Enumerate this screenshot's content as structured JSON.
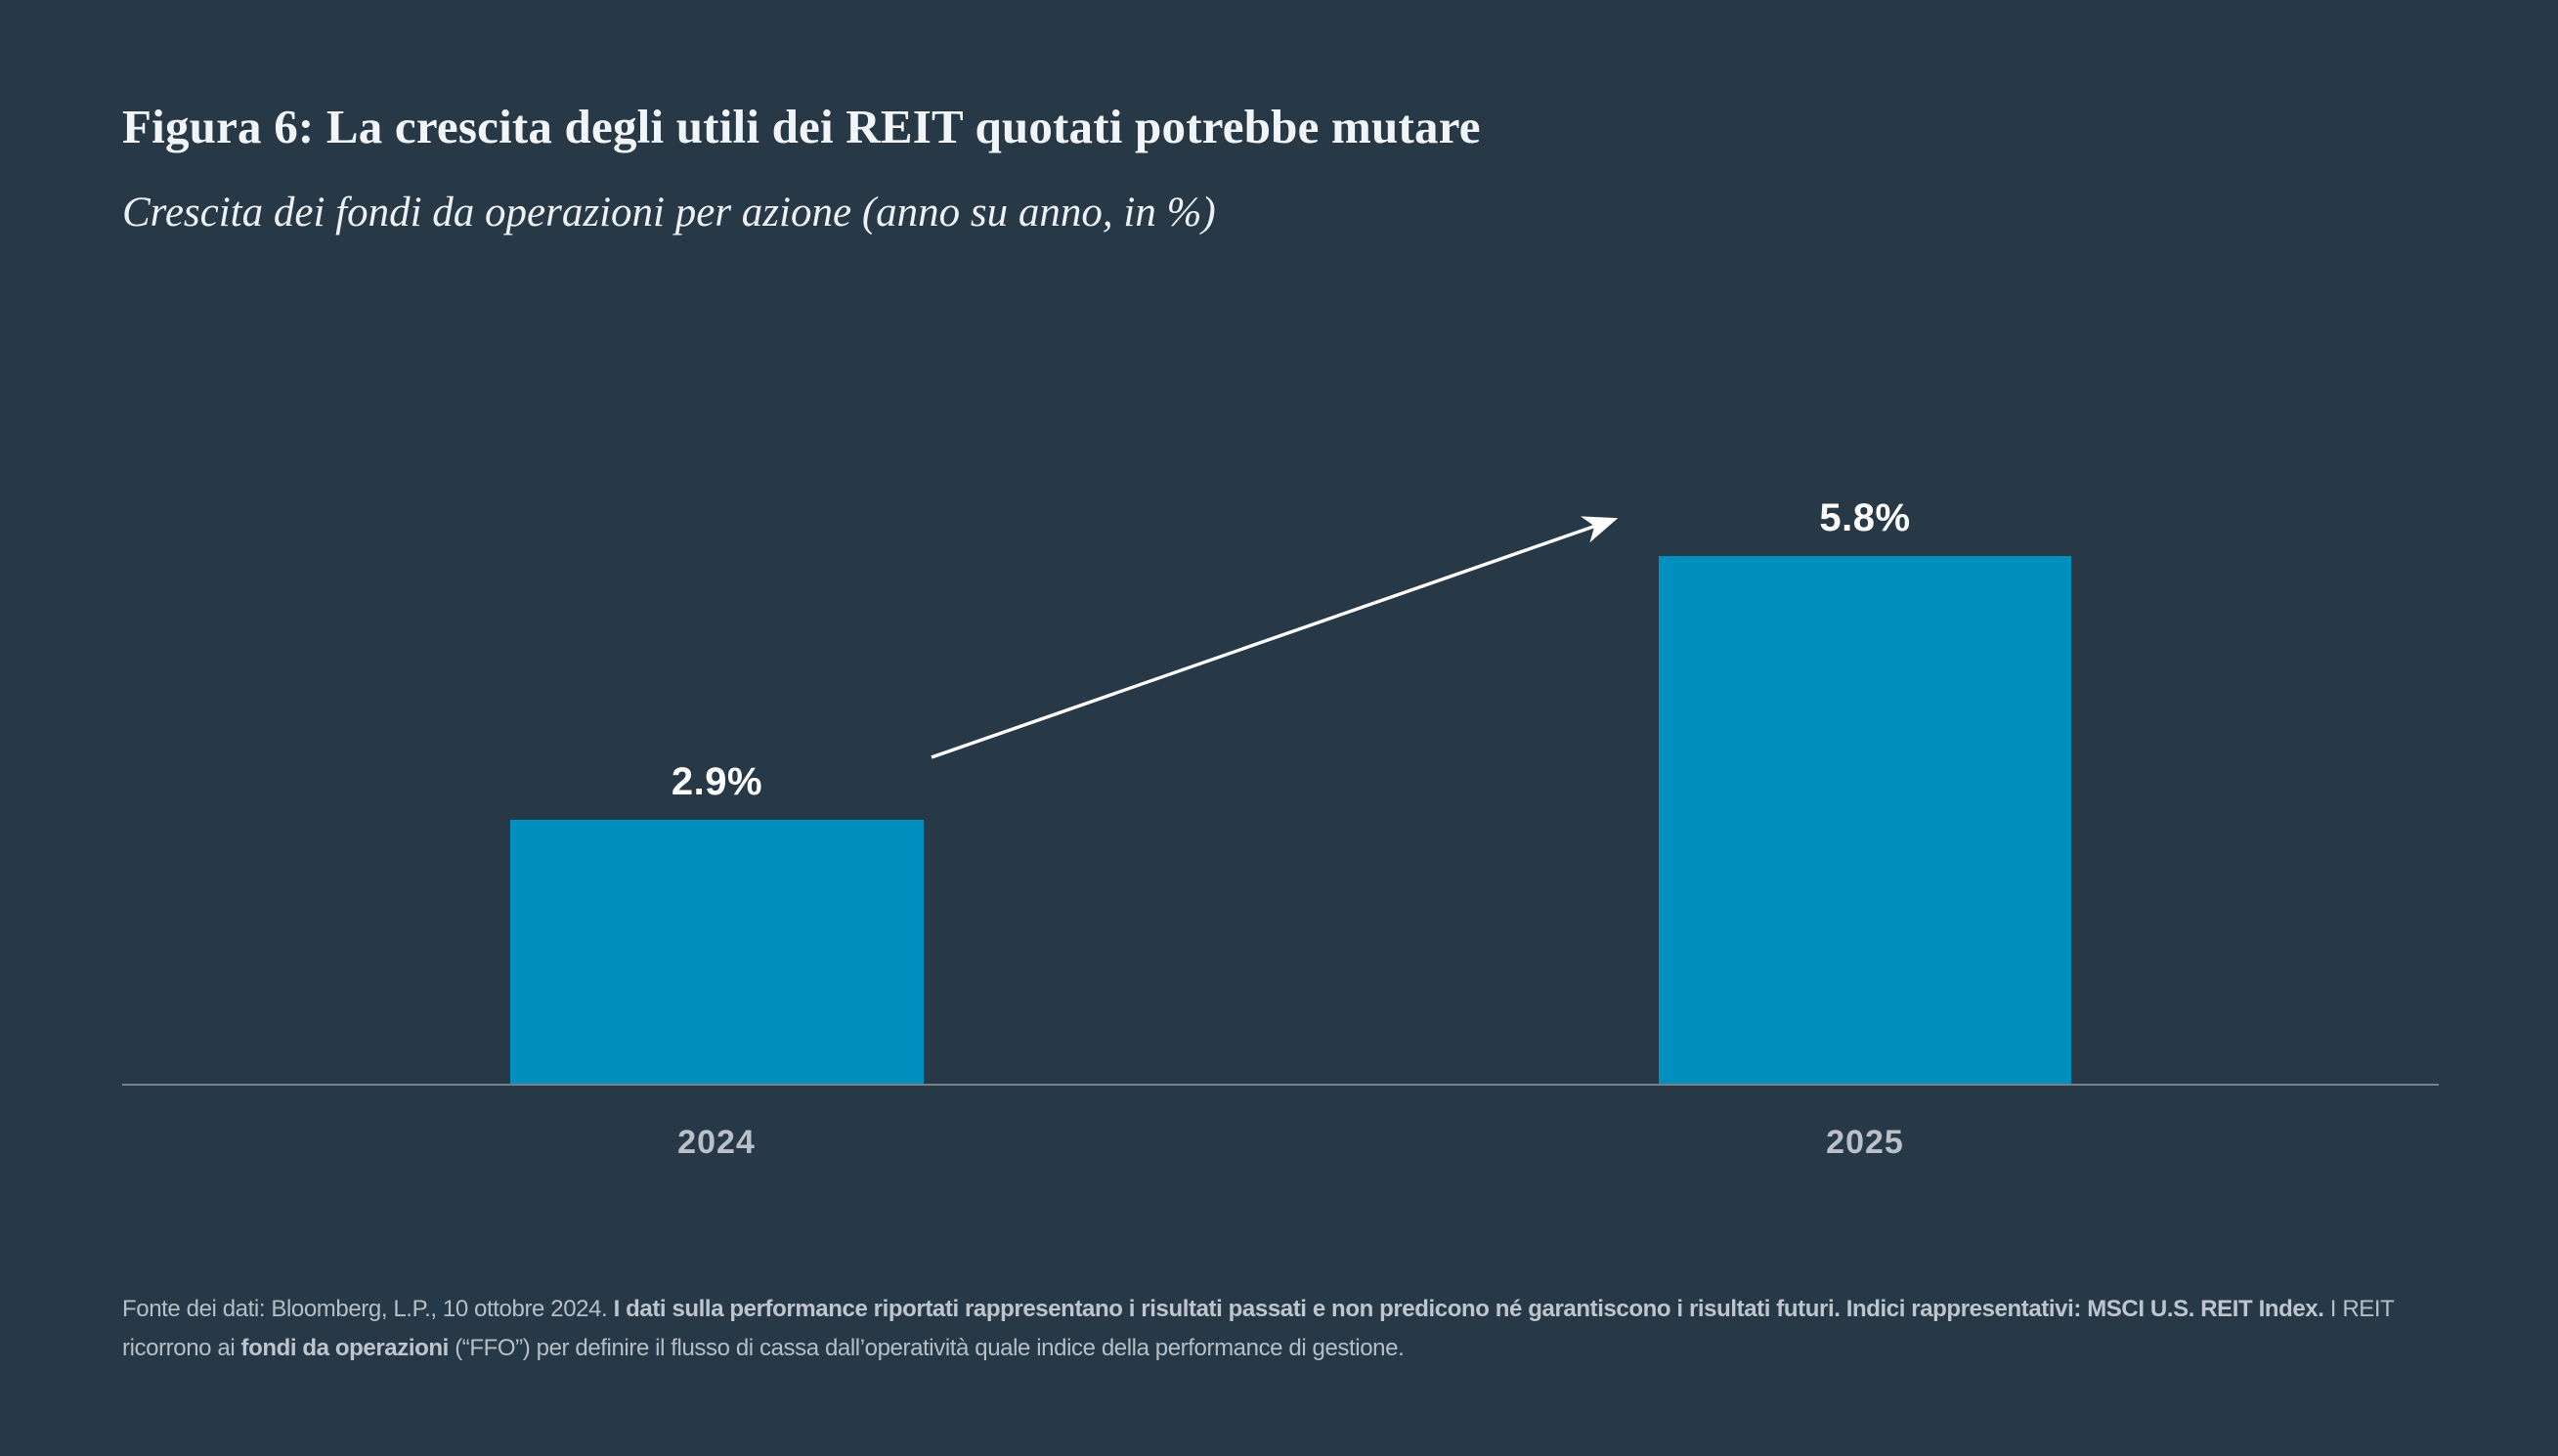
{
  "figure": {
    "title": "Figura 6: La crescita degli utili dei REIT quotati potrebbe mutare",
    "subtitle": "Crescita dei fondi da operazioni per azione (anno su anno, in %)"
  },
  "chart_data": {
    "type": "bar",
    "categories": [
      "2024",
      "2025"
    ],
    "values": [
      2.9,
      5.8
    ],
    "value_labels": [
      "2.9%",
      "5.8%"
    ],
    "unit": "%",
    "title": "Figura 6: La crescita degli utili dei REIT quotati potrebbe mutare",
    "subtitle": "Crescita dei fondi da operazioni per azione (anno su anno, in %)",
    "xlabel": "",
    "ylabel": "",
    "ylim": [
      0,
      5.8
    ],
    "grid": false,
    "legend": false,
    "bar_color": "#008FBE",
    "annotations": [
      {
        "type": "arrow",
        "from_category": "2024",
        "to_category": "2025",
        "direction": "up-right",
        "color": "#FFFFFF"
      }
    ]
  },
  "footer": {
    "seg1_regular": "Fonte dei dati: Bloomberg, L.P., 10 ottobre 2024. ",
    "seg2_bold": "I dati sulla performance riportati rappresentano i risultati passati e non predicono né garantiscono i risultati futuri. Indici rappresentativi: MSCI U.S. REIT Index.",
    "seg3_regular": " I REIT ricorrono ai ",
    "seg4_bold": "fondi da operazioni",
    "seg5_regular": " (“FFO”) per definire il flusso di cassa dall’operatività quale indice della performance di gestione."
  },
  "colors": {
    "background": "#273847",
    "bar": "#008FBE",
    "title_text": "#F2F5F7",
    "value_label_text": "#FFFFFF",
    "category_label_text": "#B9C0C7",
    "axis_line": "#76818C",
    "footnote_text": "#B7BFC6",
    "arrow": "#FFFFFF"
  }
}
